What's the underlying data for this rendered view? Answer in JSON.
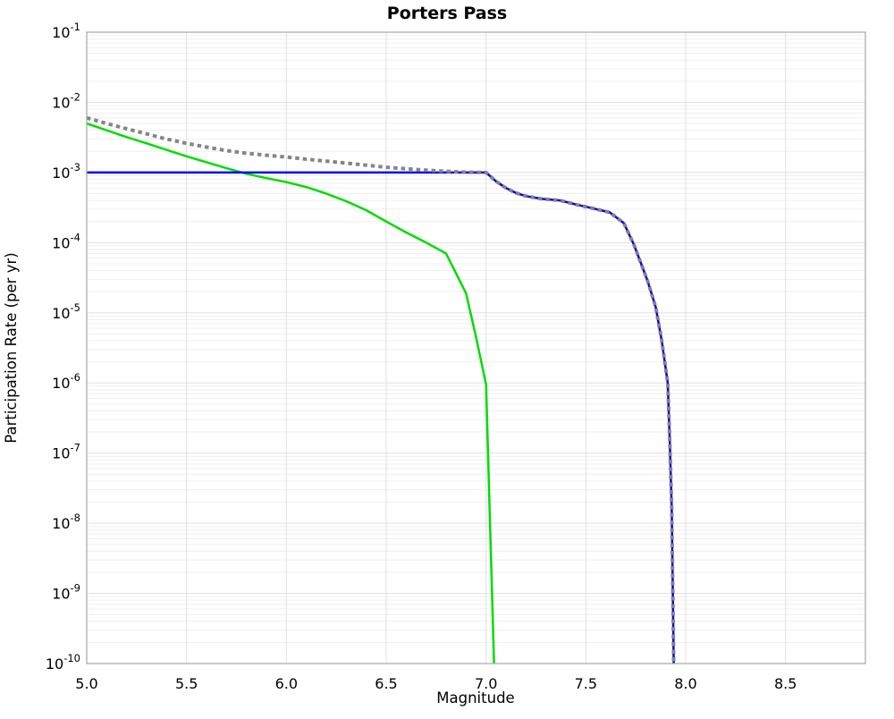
{
  "chart_data": {
    "type": "line",
    "title": "Porters Pass",
    "xlabel": "Magnitude",
    "ylabel": "Participation Rate (per yr)",
    "xlim": [
      5.0,
      8.9
    ],
    "y_scale": "log",
    "ylim_exp": [
      -10,
      -1
    ],
    "grid": {
      "horizontal": "major+minor",
      "vertical": "major",
      "minor_color": "#efefef",
      "major_color": "#e0e0e0",
      "border_color": "#a6a6a6"
    },
    "legend": "none",
    "x_ticks": [
      {
        "value": 5.0,
        "label": "5.0"
      },
      {
        "value": 5.5,
        "label": "5.5"
      },
      {
        "value": 6.0,
        "label": "6.0"
      },
      {
        "value": 6.5,
        "label": "6.5"
      },
      {
        "value": 7.0,
        "label": "7.0"
      },
      {
        "value": 7.5,
        "label": "7.5"
      },
      {
        "value": 8.0,
        "label": "8.0"
      },
      {
        "value": 8.5,
        "label": "8.5"
      }
    ],
    "y_tick_exponents": [
      -1,
      -2,
      -3,
      -4,
      -5,
      -6,
      -7,
      -8,
      -9,
      -10
    ],
    "series": [
      {
        "name": "green-line",
        "color": "#00dd00",
        "style": "solid",
        "width": 2.5,
        "points": [
          [
            5.0,
            0.005
          ],
          [
            5.1,
            0.004
          ],
          [
            5.2,
            0.0032
          ],
          [
            5.3,
            0.0026
          ],
          [
            5.4,
            0.0021
          ],
          [
            5.5,
            0.0017
          ],
          [
            5.6,
            0.0014
          ],
          [
            5.7,
            0.00115
          ],
          [
            5.8,
            0.00096
          ],
          [
            5.9,
            0.00083
          ],
          [
            6.0,
            0.00073
          ],
          [
            6.1,
            0.00062
          ],
          [
            6.2,
            0.0005
          ],
          [
            6.3,
            0.00039
          ],
          [
            6.4,
            0.00029
          ],
          [
            6.5,
            0.0002
          ],
          [
            6.6,
            0.00014
          ],
          [
            6.7,
            0.0001
          ],
          [
            6.8,
            7e-05
          ],
          [
            6.9,
            1.9e-05
          ],
          [
            6.95,
            4.5e-06
          ],
          [
            7.0,
            9.5e-07
          ],
          [
            7.01,
            1e-07
          ],
          [
            7.02,
            1e-08
          ],
          [
            7.03,
            1e-09
          ],
          [
            7.04,
            1e-10
          ]
        ]
      },
      {
        "name": "blue-line",
        "color": "#0000ee",
        "style": "solid",
        "width": 2.5,
        "points": [
          [
            5.0,
            0.001
          ],
          [
            7.0,
            0.001
          ],
          [
            7.05,
            0.00075
          ],
          [
            7.1,
            0.0006
          ],
          [
            7.15,
            0.00051
          ],
          [
            7.2,
            0.00046
          ],
          [
            7.28,
            0.00042
          ],
          [
            7.37,
            0.0004
          ],
          [
            7.45,
            0.00035
          ],
          [
            7.51,
            0.00032
          ],
          [
            7.62,
            0.00027
          ],
          [
            7.69,
            0.00019
          ],
          [
            7.74,
            9.5e-05
          ],
          [
            7.81,
            2.8e-05
          ],
          [
            7.85,
            1.2e-05
          ],
          [
            7.88,
            4e-06
          ],
          [
            7.91,
            1e-06
          ],
          [
            7.92,
            1.6e-07
          ],
          [
            7.93,
            1.6e-08
          ],
          [
            7.94,
            1e-10
          ]
        ]
      },
      {
        "name": "gray-dotted-line",
        "color": "#858585",
        "style": "dotted",
        "width": 4,
        "note": "merges with blue-line at magnitude 7.0 and overlays it down to the axis",
        "points": [
          [
            5.0,
            0.006
          ],
          [
            5.1,
            0.005
          ],
          [
            5.2,
            0.0042
          ],
          [
            5.3,
            0.00355
          ],
          [
            5.4,
            0.003
          ],
          [
            5.5,
            0.0026
          ],
          [
            5.6,
            0.0023
          ],
          [
            5.7,
            0.00205
          ],
          [
            5.8,
            0.00188
          ],
          [
            5.9,
            0.00176
          ],
          [
            6.0,
            0.00166
          ],
          [
            6.1,
            0.00155
          ],
          [
            6.2,
            0.00145
          ],
          [
            6.3,
            0.00136
          ],
          [
            6.4,
            0.00127
          ],
          [
            6.5,
            0.00119
          ],
          [
            6.6,
            0.00113
          ],
          [
            6.7,
            0.00108
          ],
          [
            6.8,
            0.00104
          ],
          [
            6.9,
            0.00101
          ],
          [
            7.0,
            0.001
          ],
          [
            7.05,
            0.00075
          ],
          [
            7.1,
            0.0006
          ],
          [
            7.15,
            0.00051
          ],
          [
            7.2,
            0.00046
          ],
          [
            7.28,
            0.00042
          ],
          [
            7.37,
            0.0004
          ],
          [
            7.45,
            0.00035
          ],
          [
            7.51,
            0.00032
          ],
          [
            7.62,
            0.00027
          ],
          [
            7.69,
            0.00019
          ],
          [
            7.74,
            9.5e-05
          ],
          [
            7.81,
            2.8e-05
          ],
          [
            7.85,
            1.2e-05
          ],
          [
            7.88,
            4e-06
          ],
          [
            7.91,
            1e-06
          ],
          [
            7.92,
            1.6e-07
          ],
          [
            7.93,
            1.6e-08
          ],
          [
            7.94,
            1e-10
          ]
        ]
      }
    ]
  }
}
